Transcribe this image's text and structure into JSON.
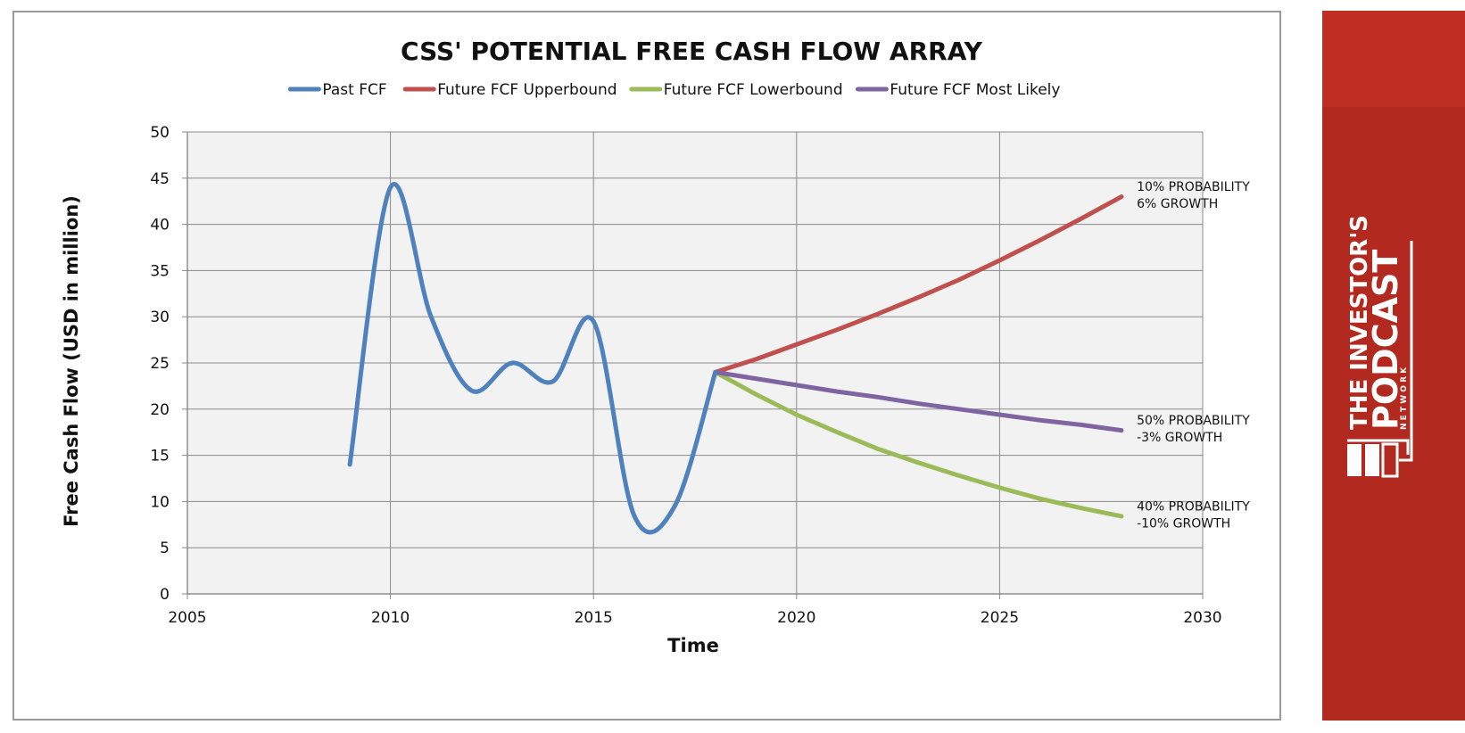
{
  "chart_data": {
    "type": "line",
    "title": "CSS' POTENTIAL FREE CASH FLOW ARRAY",
    "xlabel": "Time",
    "ylabel": "Free Cash Flow (USD in million)",
    "xlim": [
      2005,
      2030
    ],
    "ylim": [
      0,
      50
    ],
    "x_ticks": [
      2005,
      2010,
      2015,
      2020,
      2025,
      2030
    ],
    "y_ticks": [
      0,
      5,
      10,
      15,
      20,
      25,
      30,
      35,
      40,
      45,
      50
    ],
    "grid": true,
    "legend_position": "top",
    "series": [
      {
        "name": "Past FCF",
        "color": "#4f81bd",
        "smooth": true,
        "x": [
          2009,
          2010,
          2011,
          2012,
          2013,
          2014,
          2015,
          2016,
          2017,
          2018
        ],
        "y": [
          14,
          44,
          30,
          22,
          25,
          23,
          29.5,
          8.5,
          9.5,
          24
        ]
      },
      {
        "name": "Future FCF Upperbound",
        "color": "#c0504d",
        "smooth": false,
        "x": [
          2018,
          2019,
          2020,
          2021,
          2022,
          2023,
          2024,
          2025,
          2026,
          2027,
          2028
        ],
        "y": [
          24,
          25.4,
          27,
          28.6,
          30.3,
          32.1,
          34,
          36.1,
          38.3,
          40.6,
          43
        ]
      },
      {
        "name": "Future FCF Lowerbound",
        "color": "#9bbb59",
        "smooth": false,
        "x": [
          2018,
          2019,
          2020,
          2021,
          2022,
          2023,
          2024,
          2025,
          2026,
          2027,
          2028
        ],
        "y": [
          24,
          21.6,
          19.4,
          17.5,
          15.7,
          14.2,
          12.8,
          11.5,
          10.3,
          9.3,
          8.4
        ]
      },
      {
        "name": "Future FCF Most Likely",
        "color": "#8064a2",
        "smooth": false,
        "x": [
          2018,
          2019,
          2020,
          2021,
          2022,
          2023,
          2024,
          2025,
          2026,
          2027,
          2028
        ],
        "y": [
          24,
          23.3,
          22.6,
          21.9,
          21.3,
          20.6,
          20,
          19.4,
          18.8,
          18.3,
          17.7
        ]
      }
    ],
    "annotations": [
      {
        "lines": [
          "10% PROBABILITY",
          "6% GROWTH"
        ],
        "x": 2028.2,
        "y": 43
      },
      {
        "lines": [
          "50% PROBABILITY",
          "-3% GROWTH"
        ],
        "x": 2028.2,
        "y": 17.7
      },
      {
        "lines": [
          "40% PROBABILITY",
          "-10% GROWTH"
        ],
        "x": 2028.2,
        "y": 8.4
      }
    ]
  },
  "brand": {
    "line1": "THE INVESTOR'S",
    "line2": "PODCAST",
    "line3": "N E T W O R K",
    "background": "#b22a1f"
  }
}
